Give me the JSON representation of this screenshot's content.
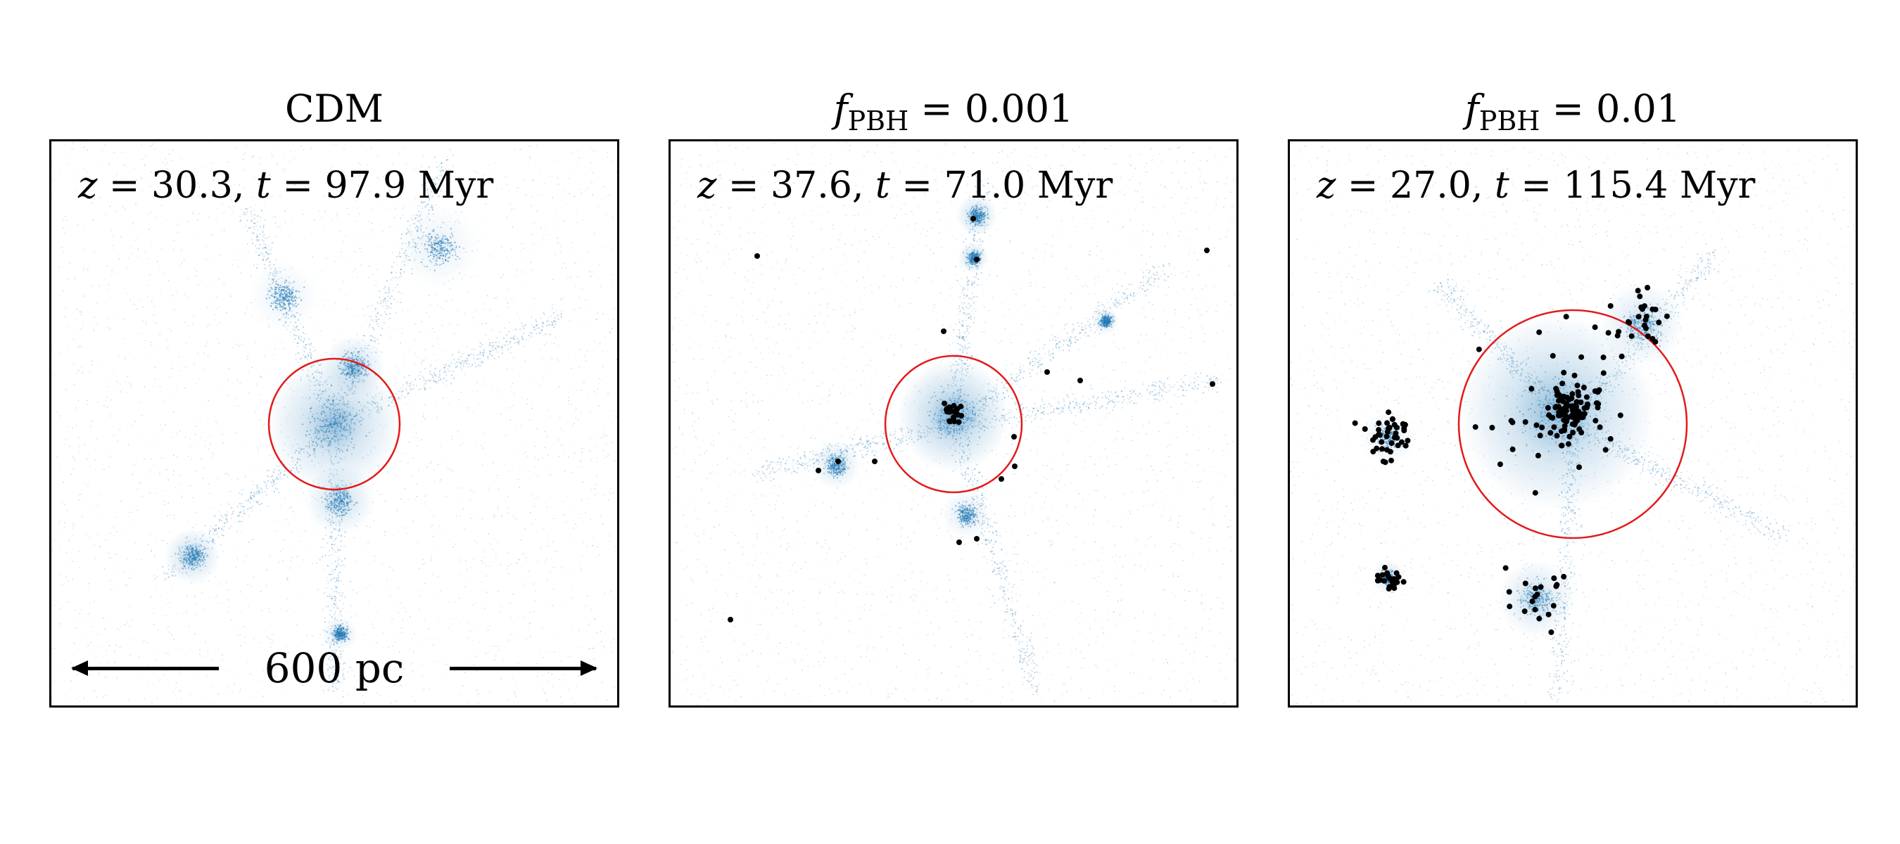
{
  "panels": [
    {
      "title_text": "CDM",
      "redshift": "30.3",
      "time": "97.9",
      "unit": "Myr",
      "scalebar_label": "600 pc",
      "pbh_count": 0
    },
    {
      "title_prefix": "f",
      "title_sub": "PBH",
      "title_value": "0.001",
      "redshift": "37.6",
      "time": "71.0",
      "unit": "Myr",
      "pbh_count": 38
    },
    {
      "title_prefix": "f",
      "title_sub": "PBH",
      "title_value": "0.01",
      "redshift": "27.0",
      "time": "115.4",
      "unit": "Myr",
      "pbh_count": 230
    }
  ],
  "colors": {
    "density_colormap": "#1f77b4",
    "virial_circle": "#e31a1c",
    "pbh_marker": "#000000",
    "frame": "#000000"
  }
}
